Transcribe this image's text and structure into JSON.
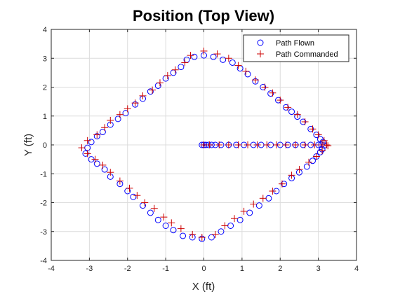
{
  "chart_data": {
    "type": "scatter",
    "title": "Position (Top View)",
    "xlabel": "X (ft)",
    "ylabel": "Y (ft)",
    "xlim": [
      -4,
      4
    ],
    "ylim": [
      -4,
      4
    ],
    "xticks": [
      -4,
      -3,
      -2,
      -1,
      0,
      1,
      2,
      3,
      4
    ],
    "yticks": [
      -4,
      -3,
      -2,
      -1,
      0,
      1,
      2,
      3,
      4
    ],
    "grid": true,
    "legend_position": "top-right",
    "series": [
      {
        "name": "Path Flown",
        "marker": "circle",
        "color": "#0000ff",
        "points": [
          [
            -0.05,
            0.0
          ],
          [
            0.0,
            0.0
          ],
          [
            0.05,
            0.0
          ],
          [
            0.12,
            0.0
          ],
          [
            0.2,
            0.0
          ],
          [
            0.3,
            0.0
          ],
          [
            0.45,
            0.0
          ],
          [
            0.65,
            0.0
          ],
          [
            0.85,
            0.0
          ],
          [
            1.05,
            0.0
          ],
          [
            1.3,
            0.0
          ],
          [
            1.5,
            0.0
          ],
          [
            1.75,
            0.0
          ],
          [
            2.0,
            0.0
          ],
          [
            2.2,
            0.0
          ],
          [
            2.4,
            0.0
          ],
          [
            2.6,
            0.0
          ],
          [
            2.8,
            0.0
          ],
          [
            3.0,
            0.0
          ],
          [
            3.08,
            0.0
          ],
          [
            3.15,
            -0.02
          ],
          [
            3.12,
            0.1
          ],
          [
            3.05,
            0.2
          ],
          [
            2.95,
            0.35
          ],
          [
            2.8,
            0.55
          ],
          [
            2.6,
            0.8
          ],
          [
            2.45,
            0.98
          ],
          [
            2.3,
            1.15
          ],
          [
            2.15,
            1.3
          ],
          [
            1.95,
            1.55
          ],
          [
            1.75,
            1.78
          ],
          [
            1.55,
            2.0
          ],
          [
            1.35,
            2.2
          ],
          [
            1.15,
            2.45
          ],
          [
            0.95,
            2.65
          ],
          [
            0.75,
            2.85
          ],
          [
            0.5,
            2.95
          ],
          [
            0.25,
            3.05
          ],
          [
            0.0,
            3.1
          ],
          [
            -0.25,
            3.05
          ],
          [
            -0.45,
            2.95
          ],
          [
            -0.6,
            2.7
          ],
          [
            -0.8,
            2.5
          ],
          [
            -1.0,
            2.3
          ],
          [
            -1.2,
            2.05
          ],
          [
            -1.4,
            1.85
          ],
          [
            -1.6,
            1.6
          ],
          [
            -1.8,
            1.4
          ],
          [
            -2.05,
            1.1
          ],
          [
            -2.25,
            0.9
          ],
          [
            -2.45,
            0.7
          ],
          [
            -2.65,
            0.45
          ],
          [
            -2.8,
            0.3
          ],
          [
            -2.95,
            0.1
          ],
          [
            -3.05,
            -0.1
          ],
          [
            -3.1,
            -0.3
          ],
          [
            -2.95,
            -0.5
          ],
          [
            -2.8,
            -0.65
          ],
          [
            -2.6,
            -0.85
          ],
          [
            -2.45,
            -1.1
          ],
          [
            -2.2,
            -1.35
          ],
          [
            -2.0,
            -1.6
          ],
          [
            -1.85,
            -1.8
          ],
          [
            -1.6,
            -2.1
          ],
          [
            -1.4,
            -2.35
          ],
          [
            -1.2,
            -2.6
          ],
          [
            -1.0,
            -2.8
          ],
          [
            -0.8,
            -2.95
          ],
          [
            -0.55,
            -3.15
          ],
          [
            -0.3,
            -3.2
          ],
          [
            -0.05,
            -3.25
          ],
          [
            0.2,
            -3.2
          ],
          [
            0.45,
            -3.0
          ],
          [
            0.7,
            -2.8
          ],
          [
            0.95,
            -2.6
          ],
          [
            1.2,
            -2.35
          ],
          [
            1.45,
            -2.1
          ],
          [
            1.7,
            -1.85
          ],
          [
            1.9,
            -1.6
          ],
          [
            2.1,
            -1.35
          ],
          [
            2.3,
            -1.15
          ],
          [
            2.5,
            -0.95
          ],
          [
            2.7,
            -0.75
          ],
          [
            2.85,
            -0.55
          ],
          [
            2.95,
            -0.4
          ],
          [
            3.05,
            -0.25
          ],
          [
            3.1,
            -0.15
          ]
        ]
      },
      {
        "name": "Path Commanded",
        "marker": "plus",
        "color": "#cc0000",
        "points": [
          [
            0.0,
            0.0
          ],
          [
            0.15,
            0.0
          ],
          [
            0.4,
            0.0
          ],
          [
            0.65,
            0.0
          ],
          [
            0.9,
            0.0
          ],
          [
            1.15,
            0.0
          ],
          [
            1.4,
            0.0
          ],
          [
            1.65,
            0.0
          ],
          [
            1.9,
            0.0
          ],
          [
            2.15,
            0.0
          ],
          [
            2.4,
            0.0
          ],
          [
            2.65,
            0.0
          ],
          [
            2.9,
            0.0
          ],
          [
            3.1,
            0.0
          ],
          [
            3.22,
            0.0
          ],
          [
            3.25,
            -0.03
          ],
          [
            3.15,
            0.15
          ],
          [
            3.0,
            0.35
          ],
          [
            2.85,
            0.55
          ],
          [
            2.65,
            0.8
          ],
          [
            2.45,
            1.05
          ],
          [
            2.2,
            1.3
          ],
          [
            2.0,
            1.55
          ],
          [
            1.8,
            1.8
          ],
          [
            1.6,
            2.0
          ],
          [
            1.35,
            2.25
          ],
          [
            1.1,
            2.55
          ],
          [
            0.9,
            2.75
          ],
          [
            0.65,
            3.0
          ],
          [
            0.35,
            3.15
          ],
          [
            0.0,
            3.25
          ],
          [
            -0.35,
            3.1
          ],
          [
            -0.5,
            2.85
          ],
          [
            -0.75,
            2.6
          ],
          [
            -0.95,
            2.4
          ],
          [
            -1.15,
            2.15
          ],
          [
            -1.35,
            1.9
          ],
          [
            -1.6,
            1.7
          ],
          [
            -1.8,
            1.45
          ],
          [
            -2.0,
            1.25
          ],
          [
            -2.2,
            1.05
          ],
          [
            -2.45,
            0.85
          ],
          [
            -2.6,
            0.6
          ],
          [
            -2.8,
            0.35
          ],
          [
            -3.05,
            0.15
          ],
          [
            -3.2,
            -0.1
          ],
          [
            -3.05,
            -0.3
          ],
          [
            -2.85,
            -0.5
          ],
          [
            -2.65,
            -0.7
          ],
          [
            -2.45,
            -0.95
          ],
          [
            -2.2,
            -1.25
          ],
          [
            -1.95,
            -1.5
          ],
          [
            -1.75,
            -1.75
          ],
          [
            -1.55,
            -2.0
          ],
          [
            -1.3,
            -2.2
          ],
          [
            -1.05,
            -2.5
          ],
          [
            -0.85,
            -2.7
          ],
          [
            -0.6,
            -2.9
          ],
          [
            -0.3,
            -3.1
          ],
          [
            -0.05,
            -3.2
          ],
          [
            0.3,
            -3.1
          ],
          [
            0.55,
            -2.8
          ],
          [
            0.8,
            -2.55
          ],
          [
            1.05,
            -2.3
          ],
          [
            1.3,
            -2.05
          ],
          [
            1.55,
            -1.85
          ],
          [
            1.8,
            -1.6
          ],
          [
            2.05,
            -1.35
          ],
          [
            2.3,
            -1.05
          ],
          [
            2.5,
            -0.85
          ],
          [
            2.75,
            -0.6
          ],
          [
            2.95,
            -0.4
          ],
          [
            3.1,
            -0.2
          ]
        ]
      }
    ]
  }
}
